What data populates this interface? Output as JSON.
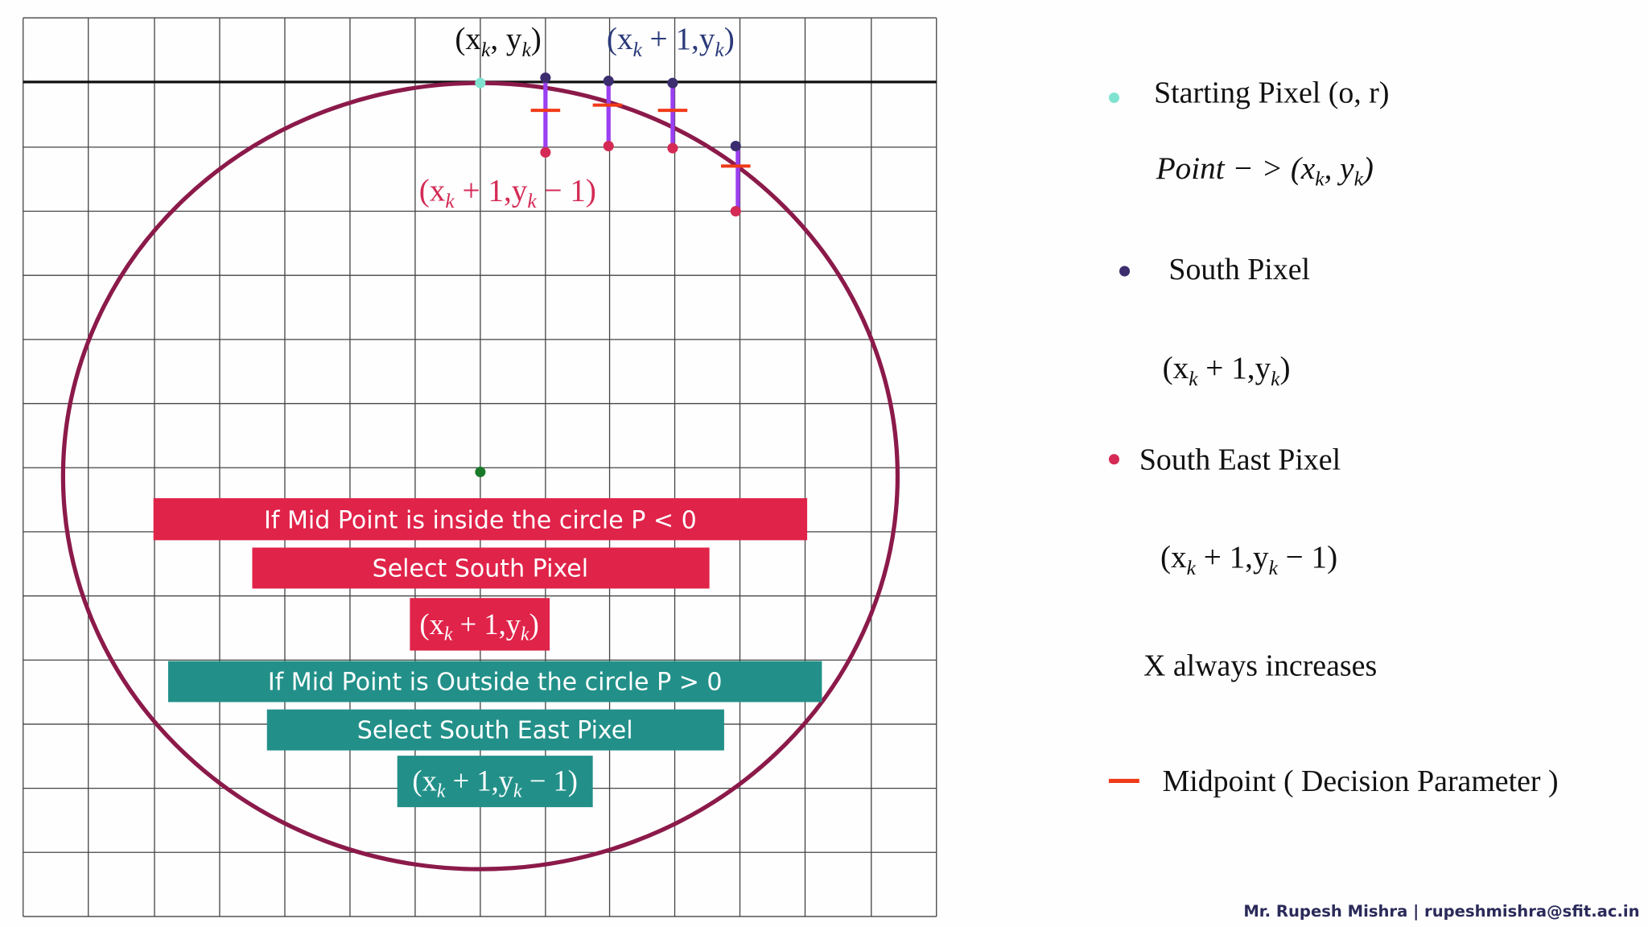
{
  "grid_labels": {
    "start": [
      "(x",
      "k",
      ", y",
      "k",
      ")"
    ],
    "south": [
      "(x",
      "k",
      " + 1,y",
      "k",
      ")"
    ],
    "south_east": [
      "(x",
      "k",
      " + 1,y",
      "k",
      " − 1)"
    ]
  },
  "boxes": {
    "inside": "If Mid Point is inside the circle P < 0",
    "select_south": "Select South Pixel",
    "south_formula": [
      "(x",
      "k",
      " + 1,y",
      "k",
      ")"
    ],
    "outside": "If Mid Point is Outside the circle P > 0",
    "select_south_east": "Select South East Pixel",
    "south_east_formula": [
      "(x",
      "k",
      " + 1,y",
      "k",
      " − 1)"
    ]
  },
  "legend": {
    "starting": "Starting Pixel (o, r)",
    "point": [
      "Point − > (x",
      "k",
      ", y",
      "k",
      ")"
    ],
    "south": "South Pixel",
    "south_formula": [
      "(x",
      "k",
      " + 1,y",
      "k",
      ")"
    ],
    "south_east": "South East Pixel",
    "south_east_formula": [
      "(x",
      "k",
      " + 1,y",
      "k",
      " − 1)"
    ],
    "x_note": "X always increases",
    "midpoint": "Midpoint ( Decision Parameter )"
  },
  "footer": "Mr. Rupesh Mishra | rupeshmishra@sfit.ac.in"
}
